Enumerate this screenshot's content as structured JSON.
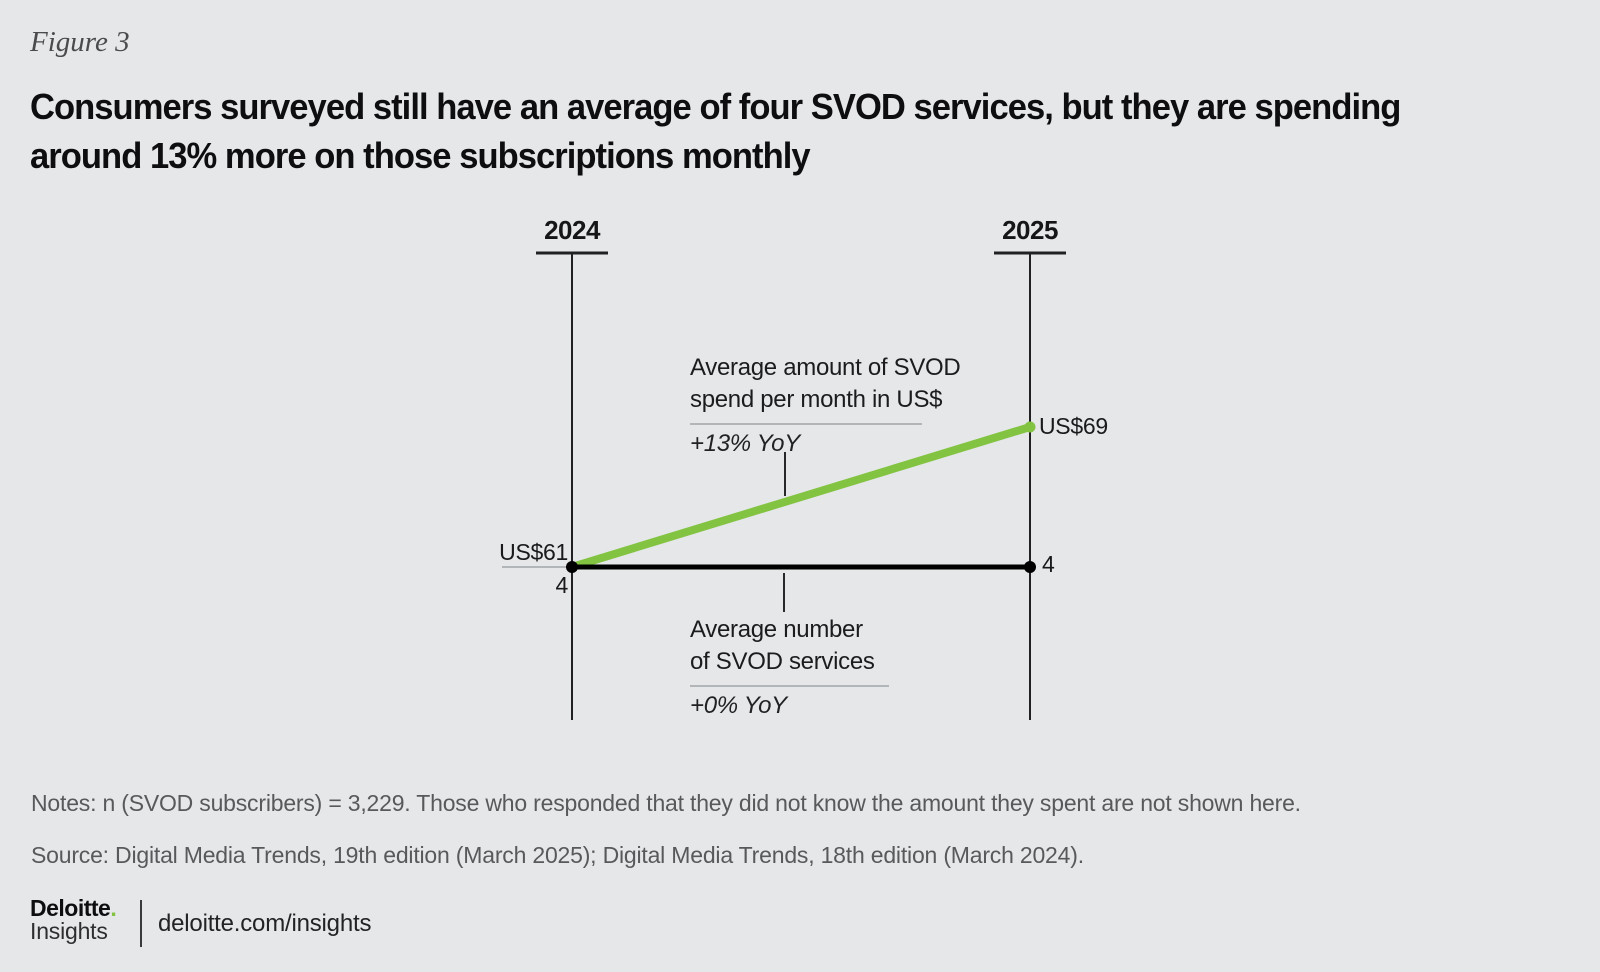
{
  "figure_label": "Figure 3",
  "title": {
    "line1": "Consumers surveyed still have an average of four SVOD services, but they are spending",
    "line2": "around 13% more on those subscriptions monthly"
  },
  "chart_data": {
    "type": "line",
    "categories": [
      "2024",
      "2025"
    ],
    "series": [
      {
        "name": "Average amount of SVOD spend per month in US$",
        "values": [
          61,
          69
        ],
        "point_labels": [
          "US$61",
          "US$69"
        ],
        "yoy_change": "+13% YoY",
        "color": "#82C341"
      },
      {
        "name": "Average number of SVOD services",
        "values": [
          4,
          4
        ],
        "point_labels": [
          "4",
          "4"
        ],
        "yoy_change": "+0% YoY",
        "color": "#000000"
      }
    ],
    "grid": false,
    "legend_position": "inline-annotations",
    "axis_style": "two vertical year axes with top ticks"
  },
  "annotations": {
    "spend": {
      "line1": "Average amount of SVOD",
      "line2": "spend per month in US$",
      "yoy": "+13% YoY"
    },
    "services": {
      "line1": "Average number",
      "line2": "of SVOD services",
      "yoy": "+0% YoY"
    }
  },
  "notes": "Notes: n (SVOD subscribers) = 3,229. Those who responded that they did not know the amount they spent are not shown here.",
  "source": "Source: Digital Media Trends, 19th edition (March 2025); Digital Media Trends, 18th edition (March 2024).",
  "footer": {
    "brand": "Deloitte",
    "brand_dot": ".",
    "brand_sub": "Insights",
    "link": "deloitte.com/insights"
  },
  "colors": {
    "background": "#E5E7E8",
    "accent_green": "#82C341",
    "text_dark": "#111113",
    "text_gray": "#58595B",
    "divider_gray": "#B3B6B8"
  }
}
